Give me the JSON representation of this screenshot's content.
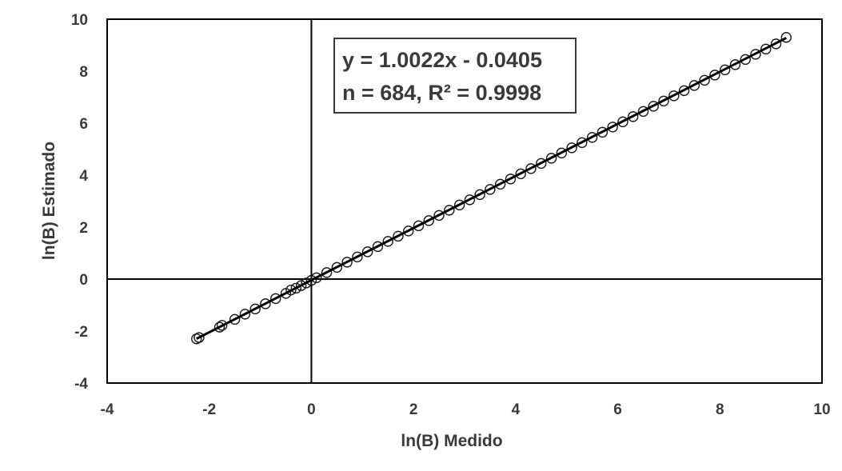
{
  "chart_data": {
    "type": "scatter",
    "xlabel": "ln(B) Medido",
    "ylabel": "ln(B) Estimado",
    "xlim": [
      -4,
      10
    ],
    "ylim": [
      -4,
      10
    ],
    "x_ticks": [
      -4,
      -2,
      0,
      2,
      4,
      6,
      8,
      10
    ],
    "y_ticks": [
      -4,
      -2,
      0,
      2,
      4,
      6,
      8,
      10
    ],
    "x_tick_labels": [
      "-4",
      "-2",
      "0",
      "2",
      "4",
      "6",
      "8",
      "10"
    ],
    "y_tick_labels": [
      "-4",
      "-2",
      "0",
      "2",
      "4",
      "6",
      "8",
      "10"
    ],
    "grid": false,
    "zero_lines": true,
    "marker": "open-circle",
    "series": [
      {
        "x": [
          -2.25,
          -2.2,
          -1.8,
          -1.75,
          -1.5,
          -1.3,
          -1.1,
          -0.9,
          -0.7,
          -0.5,
          -0.4,
          -0.3,
          -0.2,
          -0.1,
          0.0,
          0.1,
          0.3,
          0.5,
          0.7,
          0.9,
          1.1,
          1.3,
          1.5,
          1.7,
          1.9,
          2.1,
          2.3,
          2.5,
          2.7,
          2.9,
          3.1,
          3.3,
          3.5,
          3.7,
          3.9,
          4.1,
          4.3,
          4.5,
          4.7,
          4.9,
          5.1,
          5.3,
          5.5,
          5.7,
          5.9,
          6.1,
          6.3,
          6.5,
          6.7,
          6.9,
          7.1,
          7.3,
          7.5,
          7.7,
          7.9,
          8.1,
          8.3,
          8.5,
          8.7,
          8.9,
          9.1,
          9.3
        ],
        "y": [
          -2.3,
          -2.25,
          -1.85,
          -1.78,
          -1.55,
          -1.35,
          -1.15,
          -0.95,
          -0.75,
          -0.55,
          -0.42,
          -0.35,
          -0.25,
          -0.15,
          -0.05,
          0.05,
          0.25,
          0.45,
          0.65,
          0.85,
          1.05,
          1.25,
          1.45,
          1.65,
          1.85,
          2.05,
          2.25,
          2.45,
          2.65,
          2.85,
          3.05,
          3.25,
          3.45,
          3.65,
          3.85,
          4.05,
          4.25,
          4.45,
          4.65,
          4.85,
          5.05,
          5.25,
          5.45,
          5.65,
          5.85,
          6.05,
          6.25,
          6.45,
          6.65,
          6.85,
          7.05,
          7.25,
          7.45,
          7.65,
          7.85,
          8.05,
          8.25,
          8.45,
          8.65,
          8.85,
          9.05,
          9.3
        ]
      }
    ],
    "trendline": {
      "slope": 1.0022,
      "intercept": -0.0405,
      "x_range": [
        -2.25,
        9.3
      ]
    },
    "annotation": {
      "line1": "y = 1.0022x - 0.0405",
      "line2": "n = 684, R² = 0.9998"
    }
  },
  "colors": {
    "axis": "#000000",
    "marker": "#1a1a1a",
    "text": "#3a3a3a"
  }
}
